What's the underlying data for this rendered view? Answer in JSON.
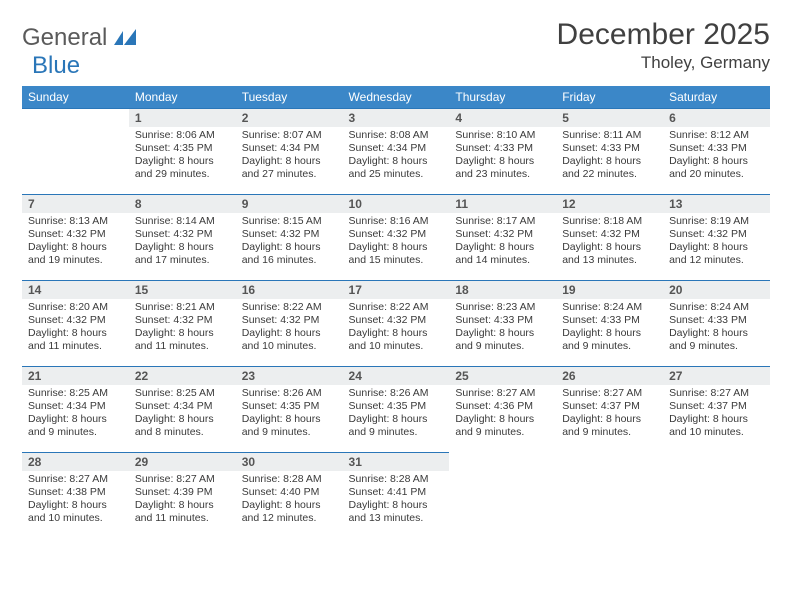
{
  "logo": {
    "word1": "General",
    "word2": "Blue"
  },
  "title": "December 2025",
  "location": "Tholey, Germany",
  "day_headers": [
    "Sunday",
    "Monday",
    "Tuesday",
    "Wednesday",
    "Thursday",
    "Friday",
    "Saturday"
  ],
  "colors": {
    "header_bg": "#3b87c8",
    "header_text": "#ffffff",
    "daynum_bg": "#eceeef",
    "border": "#2a76b8",
    "text": "#3a3a3a",
    "logo_gray": "#5a5a5a",
    "logo_blue": "#2a76b8",
    "background": "#ffffff"
  },
  "typography": {
    "title_fontsize": 30,
    "location_fontsize": 17,
    "header_fontsize": 12,
    "daynum_fontsize": 12,
    "body_fontsize": 10.5
  },
  "weeks": [
    [
      null,
      {
        "n": "1",
        "sunrise": "8:06 AM",
        "sunset": "4:35 PM",
        "dl": "8 hours and 29 minutes."
      },
      {
        "n": "2",
        "sunrise": "8:07 AM",
        "sunset": "4:34 PM",
        "dl": "8 hours and 27 minutes."
      },
      {
        "n": "3",
        "sunrise": "8:08 AM",
        "sunset": "4:34 PM",
        "dl": "8 hours and 25 minutes."
      },
      {
        "n": "4",
        "sunrise": "8:10 AM",
        "sunset": "4:33 PM",
        "dl": "8 hours and 23 minutes."
      },
      {
        "n": "5",
        "sunrise": "8:11 AM",
        "sunset": "4:33 PM",
        "dl": "8 hours and 22 minutes."
      },
      {
        "n": "6",
        "sunrise": "8:12 AM",
        "sunset": "4:33 PM",
        "dl": "8 hours and 20 minutes."
      }
    ],
    [
      {
        "n": "7",
        "sunrise": "8:13 AM",
        "sunset": "4:32 PM",
        "dl": "8 hours and 19 minutes."
      },
      {
        "n": "8",
        "sunrise": "8:14 AM",
        "sunset": "4:32 PM",
        "dl": "8 hours and 17 minutes."
      },
      {
        "n": "9",
        "sunrise": "8:15 AM",
        "sunset": "4:32 PM",
        "dl": "8 hours and 16 minutes."
      },
      {
        "n": "10",
        "sunrise": "8:16 AM",
        "sunset": "4:32 PM",
        "dl": "8 hours and 15 minutes."
      },
      {
        "n": "11",
        "sunrise": "8:17 AM",
        "sunset": "4:32 PM",
        "dl": "8 hours and 14 minutes."
      },
      {
        "n": "12",
        "sunrise": "8:18 AM",
        "sunset": "4:32 PM",
        "dl": "8 hours and 13 minutes."
      },
      {
        "n": "13",
        "sunrise": "8:19 AM",
        "sunset": "4:32 PM",
        "dl": "8 hours and 12 minutes."
      }
    ],
    [
      {
        "n": "14",
        "sunrise": "8:20 AM",
        "sunset": "4:32 PM",
        "dl": "8 hours and 11 minutes."
      },
      {
        "n": "15",
        "sunrise": "8:21 AM",
        "sunset": "4:32 PM",
        "dl": "8 hours and 11 minutes."
      },
      {
        "n": "16",
        "sunrise": "8:22 AM",
        "sunset": "4:32 PM",
        "dl": "8 hours and 10 minutes."
      },
      {
        "n": "17",
        "sunrise": "8:22 AM",
        "sunset": "4:32 PM",
        "dl": "8 hours and 10 minutes."
      },
      {
        "n": "18",
        "sunrise": "8:23 AM",
        "sunset": "4:33 PM",
        "dl": "8 hours and 9 minutes."
      },
      {
        "n": "19",
        "sunrise": "8:24 AM",
        "sunset": "4:33 PM",
        "dl": "8 hours and 9 minutes."
      },
      {
        "n": "20",
        "sunrise": "8:24 AM",
        "sunset": "4:33 PM",
        "dl": "8 hours and 9 minutes."
      }
    ],
    [
      {
        "n": "21",
        "sunrise": "8:25 AM",
        "sunset": "4:34 PM",
        "dl": "8 hours and 9 minutes."
      },
      {
        "n": "22",
        "sunrise": "8:25 AM",
        "sunset": "4:34 PM",
        "dl": "8 hours and 8 minutes."
      },
      {
        "n": "23",
        "sunrise": "8:26 AM",
        "sunset": "4:35 PM",
        "dl": "8 hours and 9 minutes."
      },
      {
        "n": "24",
        "sunrise": "8:26 AM",
        "sunset": "4:35 PM",
        "dl": "8 hours and 9 minutes."
      },
      {
        "n": "25",
        "sunrise": "8:27 AM",
        "sunset": "4:36 PM",
        "dl": "8 hours and 9 minutes."
      },
      {
        "n": "26",
        "sunrise": "8:27 AM",
        "sunset": "4:37 PM",
        "dl": "8 hours and 9 minutes."
      },
      {
        "n": "27",
        "sunrise": "8:27 AM",
        "sunset": "4:37 PM",
        "dl": "8 hours and 10 minutes."
      }
    ],
    [
      {
        "n": "28",
        "sunrise": "8:27 AM",
        "sunset": "4:38 PM",
        "dl": "8 hours and 10 minutes."
      },
      {
        "n": "29",
        "sunrise": "8:27 AM",
        "sunset": "4:39 PM",
        "dl": "8 hours and 11 minutes."
      },
      {
        "n": "30",
        "sunrise": "8:28 AM",
        "sunset": "4:40 PM",
        "dl": "8 hours and 12 minutes."
      },
      {
        "n": "31",
        "sunrise": "8:28 AM",
        "sunset": "4:41 PM",
        "dl": "8 hours and 13 minutes."
      },
      null,
      null,
      null
    ]
  ],
  "labels": {
    "sunrise": "Sunrise:",
    "sunset": "Sunset:",
    "daylight": "Daylight:"
  }
}
